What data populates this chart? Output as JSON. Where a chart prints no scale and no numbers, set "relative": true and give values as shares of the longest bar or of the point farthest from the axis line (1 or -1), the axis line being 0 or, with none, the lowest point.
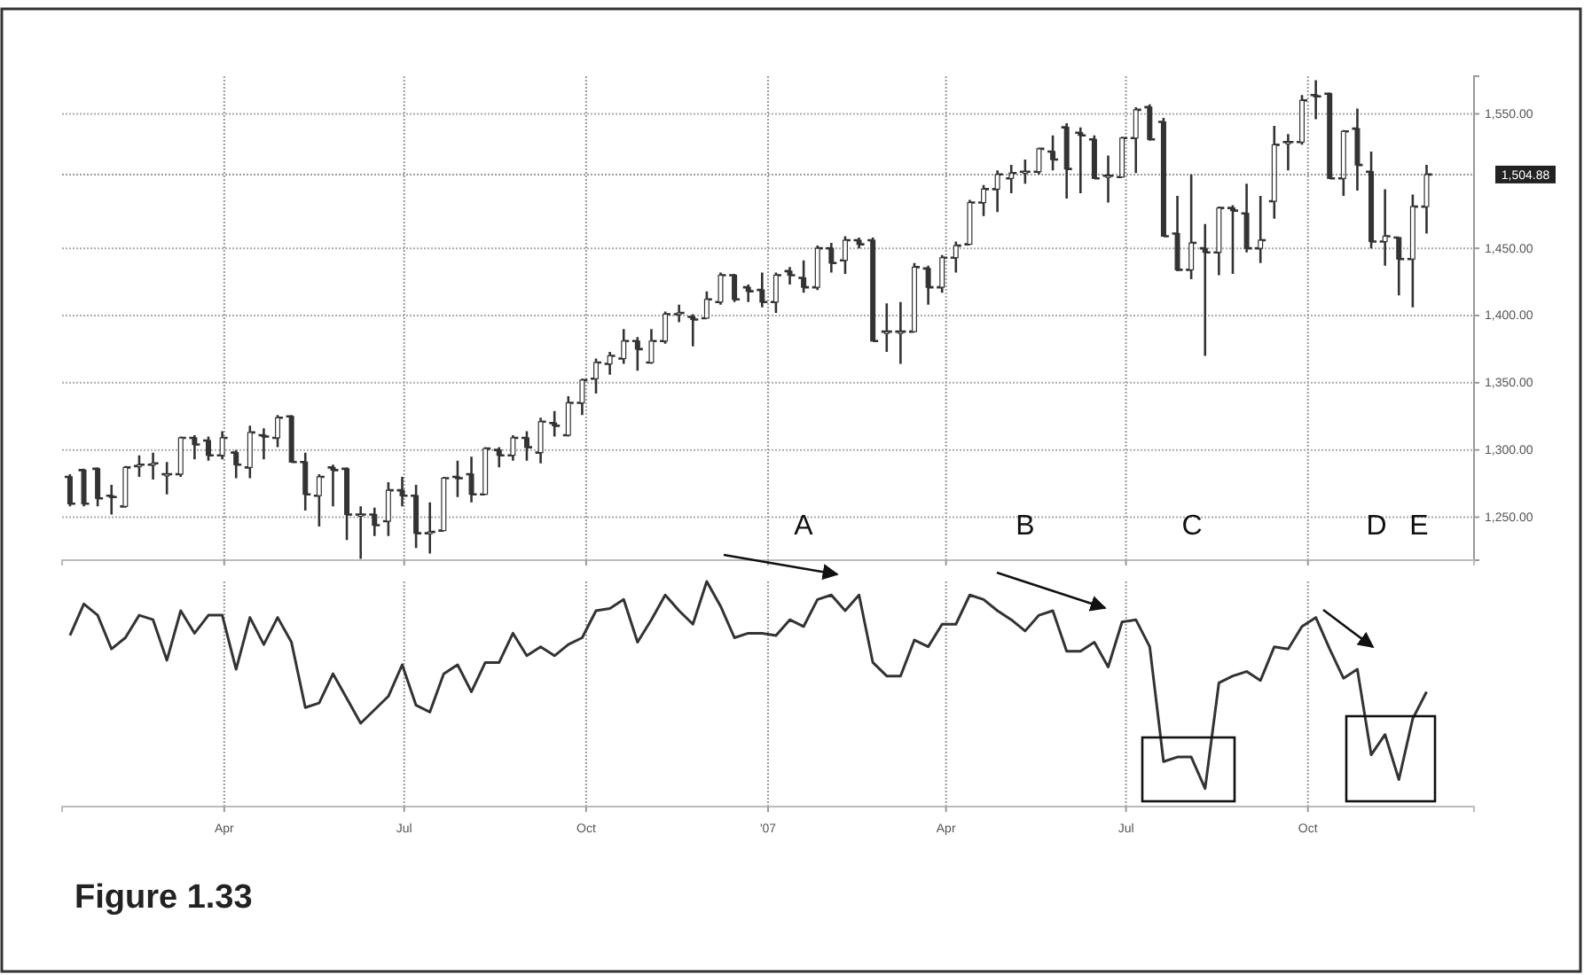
{
  "chart_data": [
    {
      "type": "candlestick",
      "x": [
        "2006-01-13",
        "2006-01-20",
        "2006-01-27",
        "2006-02-03",
        "2006-02-10",
        "2006-02-17",
        "2006-02-24",
        "2006-03-03",
        "2006-03-10",
        "2006-03-17",
        "2006-03-24",
        "2006-03-31",
        "2006-04-07",
        "2006-04-14",
        "2006-04-21",
        "2006-04-28",
        "2006-05-05",
        "2006-05-12",
        "2006-05-19",
        "2006-05-26",
        "2006-06-02",
        "2006-06-09",
        "2006-06-16",
        "2006-06-23",
        "2006-06-30",
        "2006-07-07",
        "2006-07-14",
        "2006-07-21",
        "2006-07-28",
        "2006-08-04",
        "2006-08-11",
        "2006-08-18",
        "2006-08-25",
        "2006-09-01",
        "2006-09-08",
        "2006-09-15",
        "2006-09-22",
        "2006-09-29",
        "2006-10-06",
        "2006-10-13",
        "2006-10-20",
        "2006-10-27",
        "2006-11-03",
        "2006-11-10",
        "2006-11-17",
        "2006-11-24",
        "2006-12-01",
        "2006-12-08",
        "2006-12-15",
        "2006-12-22",
        "2006-12-29",
        "2007-01-05",
        "2007-01-12",
        "2007-01-19",
        "2007-01-26",
        "2007-02-02",
        "2007-02-09",
        "2007-02-16",
        "2007-02-23",
        "2007-03-02",
        "2007-03-09",
        "2007-03-16",
        "2007-03-23",
        "2007-03-30",
        "2007-04-06",
        "2007-04-13",
        "2007-04-20",
        "2007-04-27",
        "2007-05-04",
        "2007-05-11",
        "2007-05-18",
        "2007-05-25",
        "2007-06-01",
        "2007-06-08",
        "2007-06-15",
        "2007-06-22",
        "2007-06-29",
        "2007-07-06",
        "2007-07-13",
        "2007-07-20",
        "2007-07-27",
        "2007-08-03",
        "2007-08-10",
        "2007-08-17",
        "2007-08-24",
        "2007-08-31",
        "2007-09-07",
        "2007-09-14",
        "2007-09-21",
        "2007-09-28",
        "2007-10-05",
        "2007-10-12",
        "2007-10-19",
        "2007-10-26",
        "2007-11-02",
        "2007-11-09",
        "2007-11-16",
        "2007-11-23",
        "2007-11-30"
      ],
      "ohlc": [
        [
          1280,
          1282,
          1258,
          1260
        ],
        [
          1285,
          1286,
          1258,
          1260
        ],
        [
          1286,
          1287,
          1258,
          1264
        ],
        [
          1266,
          1274,
          1252,
          1265
        ],
        [
          1258,
          1288,
          1257,
          1287
        ],
        [
          1288,
          1296,
          1280,
          1289
        ],
        [
          1289,
          1298,
          1278,
          1290
        ],
        [
          1282,
          1291,
          1267,
          1282
        ],
        [
          1282,
          1310,
          1280,
          1309
        ],
        [
          1309,
          1311,
          1293,
          1304
        ],
        [
          1307,
          1310,
          1292,
          1296
        ],
        [
          1296,
          1314,
          1293,
          1309
        ],
        [
          1298,
          1300,
          1279,
          1289
        ],
        [
          1287,
          1318,
          1279,
          1313
        ],
        [
          1311,
          1316,
          1293,
          1310
        ],
        [
          1309,
          1326,
          1302,
          1324
        ],
        [
          1325,
          1326,
          1291,
          1291
        ],
        [
          1291,
          1298,
          1255,
          1267
        ],
        [
          1266,
          1282,
          1243,
          1280
        ],
        [
          1287,
          1289,
          1258,
          1285
        ],
        [
          1286,
          1287,
          1233,
          1252
        ],
        [
          1252,
          1258,
          1219,
          1252
        ],
        [
          1252,
          1257,
          1236,
          1244
        ],
        [
          1247,
          1276,
          1236,
          1270
        ],
        [
          1270,
          1280,
          1258,
          1266
        ],
        [
          1266,
          1274,
          1227,
          1238
        ],
        [
          1238,
          1261,
          1223,
          1239
        ],
        [
          1240,
          1280,
          1240,
          1279
        ],
        [
          1280,
          1292,
          1265,
          1279
        ],
        [
          1282,
          1295,
          1261,
          1267
        ],
        [
          1267,
          1302,
          1267,
          1301
        ],
        [
          1300,
          1302,
          1287,
          1296
        ],
        [
          1296,
          1311,
          1292,
          1309
        ],
        [
          1309,
          1314,
          1292,
          1302
        ],
        [
          1298,
          1324,
          1290,
          1321
        ],
        [
          1320,
          1329,
          1310,
          1318
        ],
        [
          1311,
          1340,
          1310,
          1335
        ],
        [
          1335,
          1353,
          1326,
          1352
        ],
        [
          1353,
          1368,
          1342,
          1365
        ],
        [
          1364,
          1373,
          1356,
          1370
        ],
        [
          1368,
          1390,
          1364,
          1381
        ],
        [
          1381,
          1384,
          1359,
          1375
        ],
        [
          1365,
          1390,
          1364,
          1381
        ],
        [
          1381,
          1403,
          1379,
          1401
        ],
        [
          1401,
          1408,
          1395,
          1402
        ],
        [
          1399,
          1401,
          1377,
          1397
        ],
        [
          1398,
          1418,
          1398,
          1412
        ],
        [
          1410,
          1432,
          1408,
          1430
        ],
        [
          1430,
          1431,
          1410,
          1412
        ],
        [
          1421,
          1423,
          1410,
          1418
        ],
        [
          1419,
          1432,
          1406,
          1410
        ],
        [
          1410,
          1432,
          1402,
          1430
        ],
        [
          1433,
          1436,
          1423,
          1430
        ],
        [
          1428,
          1441,
          1417,
          1421
        ],
        [
          1421,
          1452,
          1419,
          1450
        ],
        [
          1450,
          1454,
          1432,
          1439
        ],
        [
          1441,
          1459,
          1431,
          1456
        ],
        [
          1456,
          1458,
          1450,
          1453
        ],
        [
          1456,
          1458,
          1381,
          1381
        ],
        [
          1388,
          1409,
          1373,
          1388
        ],
        [
          1388,
          1410,
          1364,
          1388
        ],
        [
          1388,
          1439,
          1388,
          1436
        ],
        [
          1435,
          1437,
          1408,
          1421
        ],
        [
          1421,
          1445,
          1417,
          1443
        ],
        [
          1443,
          1455,
          1432,
          1452
        ],
        [
          1453,
          1486,
          1453,
          1484
        ],
        [
          1484,
          1497,
          1474,
          1494
        ],
        [
          1494,
          1508,
          1477,
          1505
        ],
        [
          1502,
          1512,
          1491,
          1506
        ],
        [
          1507,
          1516,
          1498,
          1507
        ],
        [
          1507,
          1525,
          1505,
          1524
        ],
        [
          1522,
          1534,
          1508,
          1516
        ],
        [
          1540,
          1543,
          1487,
          1509
        ],
        [
          1536,
          1540,
          1491,
          1534
        ],
        [
          1531,
          1534,
          1502,
          1502
        ],
        [
          1504,
          1519,
          1484,
          1504
        ],
        [
          1503,
          1533,
          1503,
          1532
        ],
        [
          1532,
          1555,
          1506,
          1553
        ],
        [
          1555,
          1557,
          1530,
          1531
        ],
        [
          1544,
          1547,
          1459,
          1459
        ],
        [
          1461,
          1489,
          1433,
          1434
        ],
        [
          1434,
          1505,
          1427,
          1454
        ],
        [
          1450,
          1468,
          1370,
          1447
        ],
        [
          1447,
          1481,
          1430,
          1480
        ],
        [
          1480,
          1482,
          1431,
          1478
        ],
        [
          1476,
          1498,
          1447,
          1450
        ],
        [
          1450,
          1489,
          1439,
          1456
        ],
        [
          1485,
          1541,
          1472,
          1527
        ],
        [
          1529,
          1535,
          1508,
          1529
        ],
        [
          1529,
          1564,
          1527,
          1560
        ],
        [
          1564,
          1575,
          1546,
          1563
        ],
        [
          1565,
          1566,
          1502,
          1502
        ],
        [
          1502,
          1538,
          1489,
          1537
        ],
        [
          1539,
          1554,
          1493,
          1512
        ],
        [
          1507,
          1522,
          1450,
          1455
        ],
        [
          1455,
          1494,
          1437,
          1459
        ],
        [
          1458,
          1458,
          1415,
          1442
        ],
        [
          1442,
          1490,
          1406,
          1481
        ],
        [
          1481,
          1512,
          1461,
          1504.88
        ]
      ],
      "color": "#333333",
      "xlim": [
        "2006-01-09",
        "2007-12-24"
      ],
      "xticks": [
        {
          "value": "2006-04-01",
          "label": null
        },
        {
          "value": "2006-07-01",
          "label": null
        },
        {
          "value": "2006-10-01",
          "label": null
        },
        {
          "value": "2007-01-01",
          "label": null
        },
        {
          "value": "2007-04-01",
          "label": null
        },
        {
          "value": "2007-07-01",
          "label": null
        },
        {
          "value": "2007-10-01",
          "label": null
        }
      ],
      "ylim": [
        1218,
        1578
      ],
      "yticks": [
        {
          "value": 1250,
          "label": "1,250.00"
        },
        {
          "value": 1300,
          "label": "1,300.00"
        },
        {
          "value": 1350,
          "label": "1,350.00"
        },
        {
          "value": 1400,
          "label": "1,400.00"
        },
        {
          "value": 1450,
          "label": "1,450.00"
        },
        {
          "value": 1550,
          "label": "1,550.00"
        }
      ],
      "ref_lines": [
        {
          "axis": "y",
          "value": 1504.88,
          "label": "1,504.88",
          "color": "#222222"
        }
      ],
      "grid": true,
      "tick_labels": "y",
      "annotations": [
        "A",
        "B",
        "C",
        "D",
        "E"
      ]
    },
    {
      "type": "line",
      "relative": true,
      "color": "#333333",
      "line_style": "solid",
      "marker": "none",
      "grid": "x",
      "tick_labels": "x",
      "xlim": [
        "2006-01-09",
        "2007-12-24"
      ],
      "xticks": [
        {
          "value": "2006-04-01",
          "label": "Apr"
        },
        {
          "value": "2006-07-01",
          "label": "Jul"
        },
        {
          "value": "2006-10-01",
          "label": "Oct"
        },
        {
          "value": "2007-01-01",
          "label": "'07"
        },
        {
          "value": "2007-04-01",
          "label": "Apr"
        },
        {
          "value": "2007-07-01",
          "label": "Jul"
        },
        {
          "value": "2007-10-01",
          "label": "Oct"
        }
      ],
      "x": [
        "2006-01-13",
        "2006-01-20",
        "2006-01-27",
        "2006-02-03",
        "2006-02-10",
        "2006-02-17",
        "2006-02-24",
        "2006-03-03",
        "2006-03-10",
        "2006-03-17",
        "2006-03-24",
        "2006-03-31",
        "2006-04-07",
        "2006-04-14",
        "2006-04-21",
        "2006-04-28",
        "2006-05-05",
        "2006-05-12",
        "2006-05-19",
        "2006-05-26",
        "2006-06-02",
        "2006-06-09",
        "2006-06-16",
        "2006-06-23",
        "2006-06-30",
        "2006-07-07",
        "2006-07-14",
        "2006-07-21",
        "2006-07-28",
        "2006-08-04",
        "2006-08-11",
        "2006-08-18",
        "2006-08-25",
        "2006-09-01",
        "2006-09-08",
        "2006-09-15",
        "2006-09-22",
        "2006-09-29",
        "2006-10-06",
        "2006-10-13",
        "2006-10-20",
        "2006-10-27",
        "2006-11-03",
        "2006-11-10",
        "2006-11-17",
        "2006-11-24",
        "2006-12-01",
        "2006-12-08",
        "2006-12-15",
        "2006-12-22",
        "2006-12-29",
        "2007-01-05",
        "2007-01-12",
        "2007-01-19",
        "2007-01-26",
        "2007-02-02",
        "2007-02-09",
        "2007-02-16",
        "2007-02-23",
        "2007-03-02",
        "2007-03-09",
        "2007-03-16",
        "2007-03-23",
        "2007-03-30",
        "2007-04-06",
        "2007-04-13",
        "2007-04-20",
        "2007-04-27",
        "2007-05-04",
        "2007-05-11",
        "2007-05-18",
        "2007-05-25",
        "2007-06-01",
        "2007-06-08",
        "2007-06-15",
        "2007-06-22",
        "2007-06-29",
        "2007-07-06",
        "2007-07-13",
        "2007-07-20",
        "2007-07-27",
        "2007-08-03",
        "2007-08-10",
        "2007-08-17",
        "2007-08-24",
        "2007-08-31",
        "2007-09-07",
        "2007-09-14",
        "2007-09-21",
        "2007-09-28",
        "2007-10-05",
        "2007-10-12",
        "2007-10-19",
        "2007-10-26",
        "2007-11-02",
        "2007-11-09",
        "2007-11-16",
        "2007-11-23",
        "2007-11-30"
      ],
      "values": [
        0.76,
        0.9,
        0.85,
        0.7,
        0.75,
        0.85,
        0.83,
        0.65,
        0.87,
        0.77,
        0.85,
        0.85,
        0.61,
        0.84,
        0.72,
        0.84,
        0.73,
        0.44,
        0.46,
        0.59,
        0.48,
        0.37,
        0.43,
        0.49,
        0.63,
        0.45,
        0.42,
        0.59,
        0.63,
        0.51,
        0.64,
        0.64,
        0.77,
        0.67,
        0.71,
        0.67,
        0.72,
        0.75,
        0.87,
        0.88,
        0.92,
        0.73,
        0.83,
        0.94,
        0.87,
        0.81,
        1.0,
        0.89,
        0.75,
        0.77,
        0.77,
        0.76,
        0.83,
        0.8,
        0.92,
        0.94,
        0.87,
        0.94,
        0.64,
        0.58,
        0.58,
        0.74,
        0.71,
        0.81,
        0.81,
        0.94,
        0.92,
        0.87,
        0.83,
        0.78,
        0.85,
        0.87,
        0.69,
        0.69,
        0.73,
        0.62,
        0.82,
        0.83,
        0.71,
        0.2,
        0.22,
        0.22,
        0.08,
        0.55,
        0.58,
        0.6,
        0.56,
        0.71,
        0.7,
        0.8,
        0.84,
        0.7,
        0.57,
        0.61,
        0.23,
        0.32,
        0.12,
        0.39,
        0.51
      ],
      "annotations": [
        "Figure 1.33"
      ]
    }
  ]
}
